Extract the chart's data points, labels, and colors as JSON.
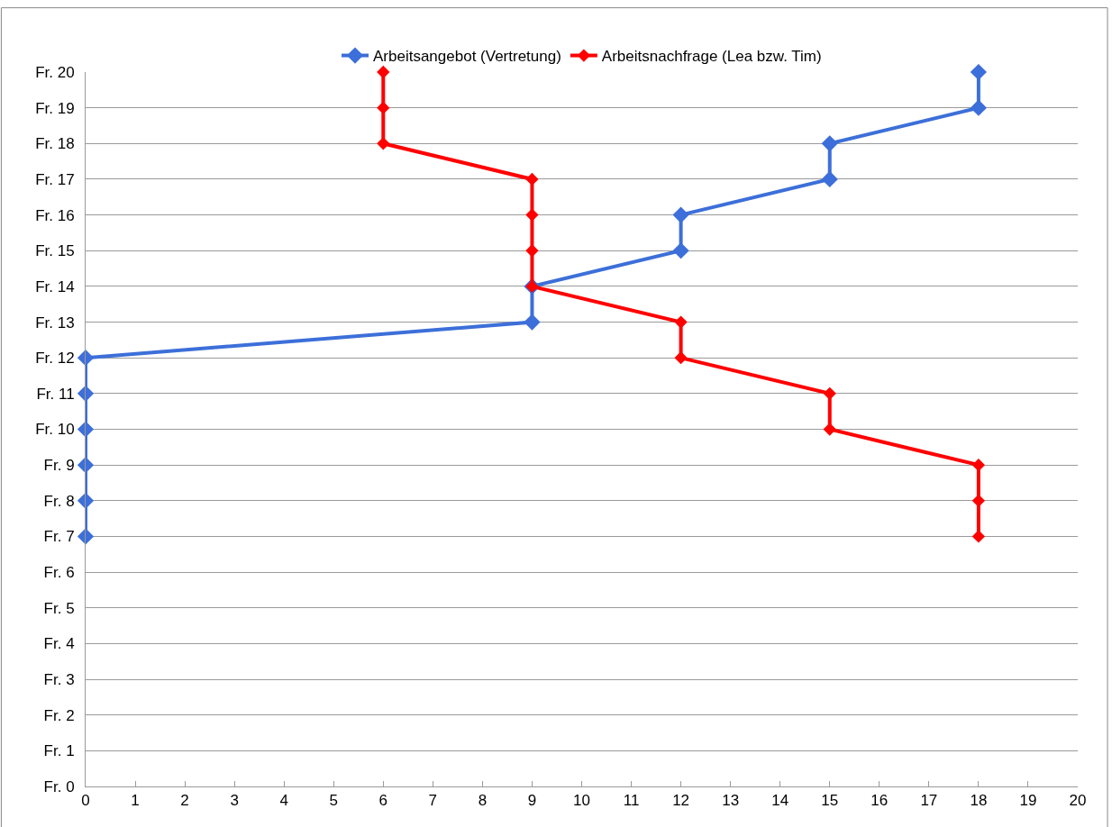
{
  "chart_data": {
    "type": "line",
    "marker": "diamond",
    "line_style": "solid",
    "grid": "y",
    "legend": "top",
    "xlim": [
      0,
      20
    ],
    "xticks": [
      0,
      1,
      2,
      3,
      4,
      5,
      6,
      7,
      8,
      9,
      10,
      11,
      12,
      13,
      14,
      15,
      16,
      17,
      18,
      19,
      20
    ],
    "ylim": [
      0,
      20
    ],
    "yticks": [
      {
        "value": 0,
        "label": "Fr. 0"
      },
      {
        "value": 1,
        "label": "Fr. 1"
      },
      {
        "value": 2,
        "label": "Fr. 2"
      },
      {
        "value": 3,
        "label": "Fr. 3"
      },
      {
        "value": 4,
        "label": "Fr. 4"
      },
      {
        "value": 5,
        "label": "Fr. 5"
      },
      {
        "value": 6,
        "label": "Fr. 6"
      },
      {
        "value": 7,
        "label": "Fr. 7"
      },
      {
        "value": 8,
        "label": "Fr. 8"
      },
      {
        "value": 9,
        "label": "Fr. 9"
      },
      {
        "value": 10,
        "label": "Fr. 10"
      },
      {
        "value": 11,
        "label": "Fr. 11"
      },
      {
        "value": 12,
        "label": "Fr. 12"
      },
      {
        "value": 13,
        "label": "Fr. 13"
      },
      {
        "value": 14,
        "label": "Fr. 14"
      },
      {
        "value": 15,
        "label": "Fr. 15"
      },
      {
        "value": 16,
        "label": "Fr. 16"
      },
      {
        "value": 17,
        "label": "Fr. 17"
      },
      {
        "value": 18,
        "label": "Fr. 18"
      },
      {
        "value": 19,
        "label": "Fr. 19"
      },
      {
        "value": 20,
        "label": "Fr. 20"
      }
    ],
    "series": [
      {
        "name": "Arbeitsangebot (Vertretung)",
        "color": "#3c6fd9",
        "x": [
          0,
          0,
          0,
          0,
          0,
          0,
          9,
          9,
          12,
          12,
          15,
          15,
          18,
          18
        ],
        "values": [
          7,
          8,
          9,
          10,
          11,
          12,
          13,
          14,
          15,
          16,
          17,
          18,
          19,
          20
        ]
      },
      {
        "name": "Arbeitsnachfrage (Lea bzw. Tim)",
        "color": "#ff0000",
        "x": [
          18,
          18,
          18,
          15,
          15,
          12,
          12,
          9,
          9,
          9,
          9,
          6,
          6,
          6
        ],
        "values": [
          7,
          8,
          9,
          10,
          11,
          12,
          13,
          14,
          15,
          16,
          17,
          18,
          19,
          20
        ]
      }
    ]
  }
}
